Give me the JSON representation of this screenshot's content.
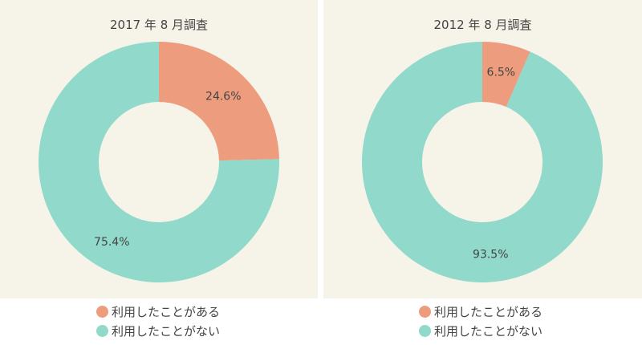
{
  "chart_data": [
    {
      "type": "pie",
      "donut": true,
      "title": "2017 年 8 月調査",
      "categories": [
        "利用したことがある",
        "利用したことがない"
      ],
      "values": [
        24.6,
        75.4
      ],
      "labels": [
        "24.6%",
        "75.4%"
      ],
      "colors": [
        "#ee9c7e",
        "#90d9cb"
      ],
      "legend_position": "bottom"
    },
    {
      "type": "pie",
      "donut": true,
      "title": "2012 年 8 月調査",
      "categories": [
        "利用したことがある",
        "利用したことがない"
      ],
      "values": [
        6.5,
        93.5
      ],
      "labels": [
        "6.5%",
        "93.5%"
      ],
      "colors": [
        "#ee9c7e",
        "#90d9cb"
      ],
      "legend_position": "bottom"
    }
  ]
}
